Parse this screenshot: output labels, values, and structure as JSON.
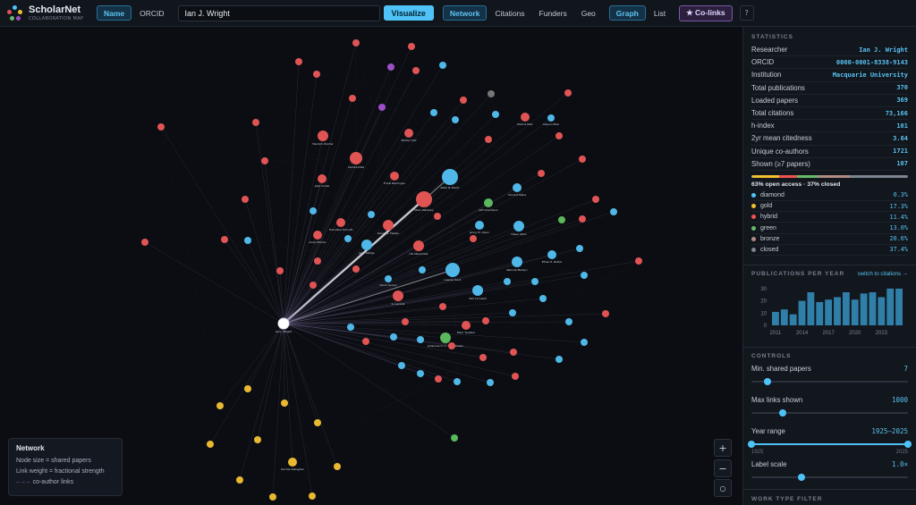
{
  "app": {
    "title": "ScholarNet",
    "subtitle": "COLLABORATION MAP"
  },
  "topbar": {
    "search_modes": [
      {
        "label": "Name",
        "active": true
      },
      {
        "label": "ORCID",
        "active": false
      }
    ],
    "search_value": "Ian J. Wright",
    "visualize_label": "Visualize",
    "view_tabs": [
      {
        "label": "Network",
        "active": true
      },
      {
        "label": "Citations",
        "active": false
      },
      {
        "label": "Funders",
        "active": false
      },
      {
        "label": "Geo",
        "active": false
      }
    ],
    "layout_tabs": [
      {
        "label": "Graph",
        "active": true
      },
      {
        "label": "List",
        "active": false
      }
    ],
    "colinks_label": "★ Co-links",
    "help_label": "?"
  },
  "legend": {
    "title": "Network",
    "lines": [
      "Node size = shared papers",
      "Link weight = fractional strength"
    ],
    "coauthor": "co-author links"
  },
  "zoom": {
    "in": "+",
    "out": "−",
    "reset": "○"
  },
  "stats": {
    "title": "STATISTICS",
    "rows": [
      {
        "label": "Researcher",
        "value": "Ian J. Wright"
      },
      {
        "label": "ORCID",
        "value": "0000-0001-8338-9143"
      },
      {
        "label": "Institution",
        "value": "Macquarie University"
      },
      {
        "label": "Total publications",
        "value": "370"
      },
      {
        "label": "Loaded papers",
        "value": "369"
      },
      {
        "label": "Total citations",
        "value": "73,166"
      },
      {
        "label": "h-index",
        "value": "101"
      },
      {
        "label": "2yr mean citedness",
        "value": "3.64"
      },
      {
        "label": "Unique co-authors",
        "value": "1721"
      },
      {
        "label": "Shown (≥7 papers)",
        "value": "107"
      }
    ],
    "oa_summary": "63% open access · 37% closed",
    "oa": [
      {
        "label": "diamond",
        "pct": "0.3%",
        "color": "#4fc3f7",
        "frac": 0.003
      },
      {
        "label": "gold",
        "pct": "17.3%",
        "color": "#f0c02e",
        "frac": 0.173
      },
      {
        "label": "hybrid",
        "pct": "11.4%",
        "color": "#ef5350",
        "frac": 0.114
      },
      {
        "label": "green",
        "pct": "13.0%",
        "color": "#66bb6a",
        "frac": 0.13
      },
      {
        "label": "bronze",
        "pct": "20.6%",
        "color": "#b08c84",
        "frac": 0.206
      },
      {
        "label": "closed",
        "pct": "37.4%",
        "color": "#7c8591",
        "frac": 0.374
      }
    ]
  },
  "pubs": {
    "title": "PUBLICATIONS PER YEAR",
    "switch_label": "switch to citations →",
    "y_ticks": [
      "30",
      "20",
      "10",
      "0"
    ],
    "x_ticks": [
      "2011",
      "2014",
      "2017",
      "2020",
      "2023"
    ],
    "chart_data": {
      "type": "bar",
      "categories": [
        "2011",
        "2012",
        "2013",
        "2014",
        "2015",
        "2016",
        "2017",
        "2018",
        "2019",
        "2020",
        "2021",
        "2022",
        "2023",
        "2024",
        "2025"
      ],
      "values": [
        11,
        13,
        9,
        20,
        27,
        19,
        21,
        23,
        27,
        21,
        26,
        27,
        23,
        30,
        30
      ],
      "ylim": [
        0,
        35
      ]
    }
  },
  "controls": {
    "title": "CONTROLS",
    "min_shared": {
      "label": "Min. shared papers",
      "value": "7",
      "frac": 0.1
    },
    "max_links": {
      "label": "Max links shown",
      "value": "1000",
      "frac": 0.2
    },
    "year_range": {
      "label": "Year range",
      "value": "1925–2025",
      "min_label": "1925",
      "max_label": "2025",
      "lo": 0.0,
      "hi": 1.0
    },
    "label_scale": {
      "label": "Label scale",
      "value": "1.0×",
      "frac": 0.32
    }
  },
  "work_type": {
    "title": "WORK TYPE FILTER"
  },
  "graph": {
    "colors": {
      "red": "#e05454",
      "blue": "#4fb8e8",
      "yellow": "#e8b830",
      "green": "#5cb85c",
      "purple": "#9b4fc7",
      "gray": "#777777",
      "white": "#ffffff"
    },
    "labels": [
      "Ian J. Wright",
      "Peter B. Reich",
      "Mark Westoby",
      "Lawren Sack",
      "Sandra Díaz",
      "Jens Kattge",
      "Hendrik Poorter",
      "Daniel S. Falster",
      "Ülo Niinemets",
      "S. Lavorel",
      "Will Cornwell",
      "Owen Atkin",
      "Belinda Medlyn",
      "Johannes H. C. Cornelissen",
      "Jenny M. Olson",
      "Julia Cooke",
      "Andy Pitman",
      "Frank Berninger",
      "Vincent Maire",
      "Mark Tjoelker",
      "Ethan E. Butler",
      "Patrick Meir",
      "Martijn Slot",
      "Jeff Chambers",
      "Rachel Gallagher",
      "Franziska Schrodt",
      "Allyson Eller",
      "Oscar Godoy"
    ]
  }
}
